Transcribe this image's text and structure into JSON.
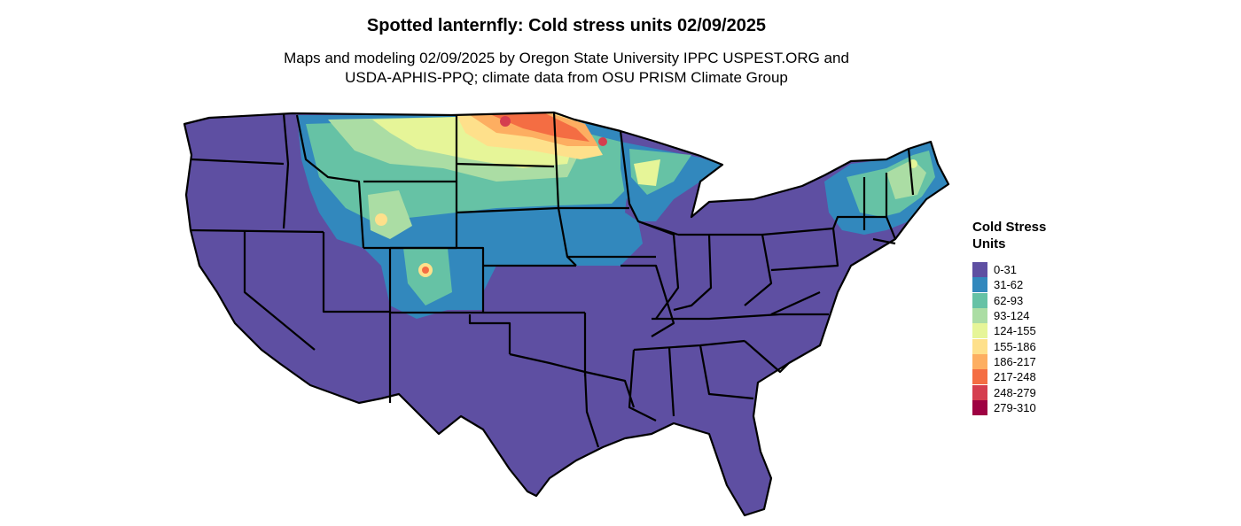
{
  "title": "Spotted lanternfly: Cold stress units 02/09/2025",
  "subtitle": {
    "line1": "Maps and modeling 02/09/2025 by Oregon State University IPPC USPEST.ORG and",
    "line2": "USDA-APHIS-PPQ; climate data from OSU PRISM Climate Group"
  },
  "legend": {
    "title_line1": "Cold Stress",
    "title_line2": "Units",
    "items": [
      {
        "label": "0-31",
        "color": "#5e4fa2"
      },
      {
        "label": "31-62",
        "color": "#3288bd"
      },
      {
        "label": "62-93",
        "color": "#66c2a5"
      },
      {
        "label": "93-124",
        "color": "#abdda4"
      },
      {
        "label": "124-155",
        "color": "#e6f598"
      },
      {
        "label": "155-186",
        "color": "#fee08b"
      },
      {
        "label": "186-217",
        "color": "#fdae61"
      },
      {
        "label": "217-248",
        "color": "#f46d43"
      },
      {
        "label": "248-279",
        "color": "#d53e4f"
      },
      {
        "label": "279-310",
        "color": "#9e0142"
      }
    ]
  }
}
